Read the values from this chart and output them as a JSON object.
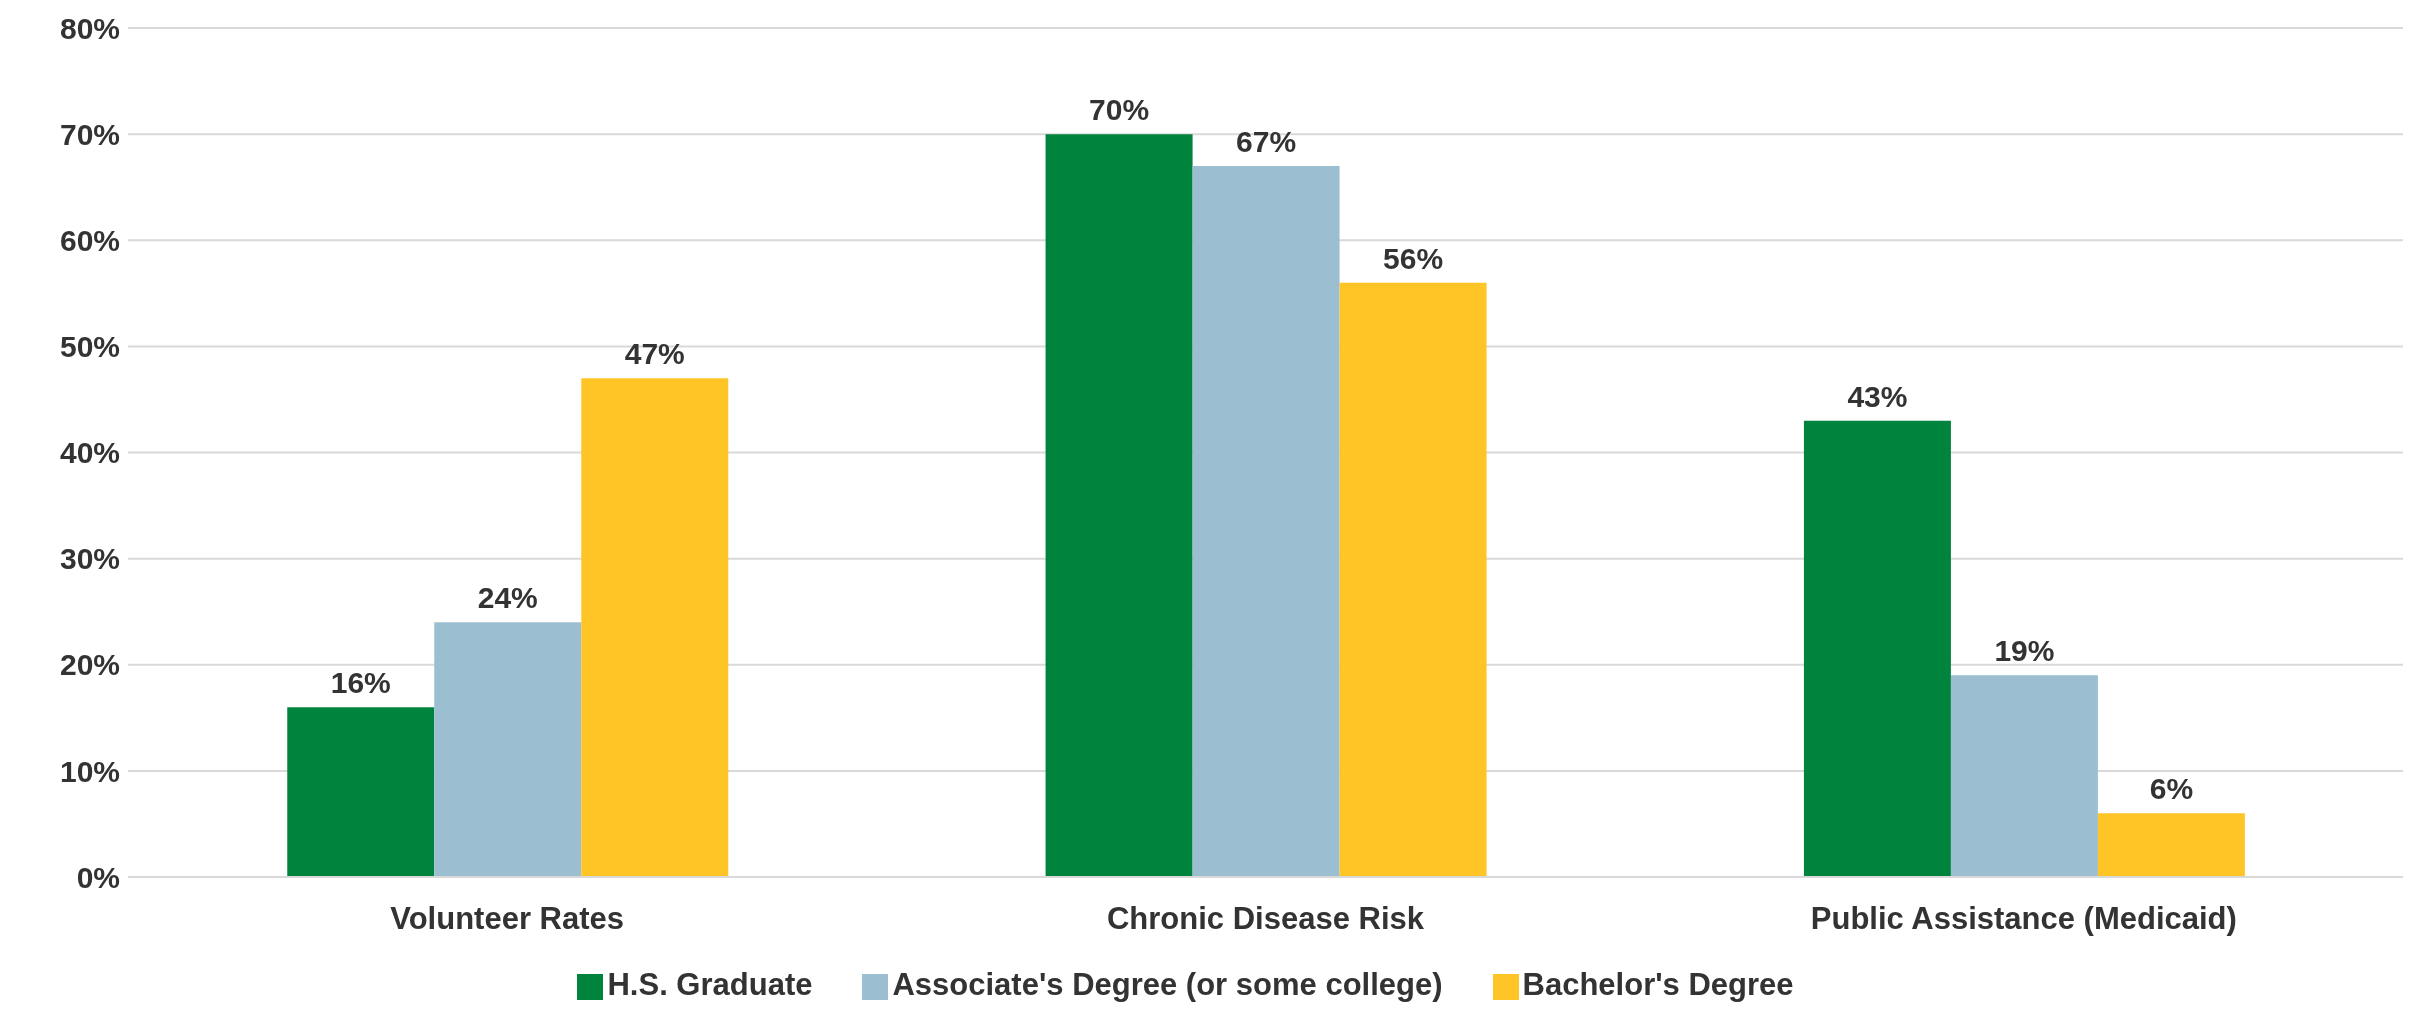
{
  "chart_data": {
    "type": "bar",
    "categories": [
      "Volunteer Rates",
      "Chronic Disease Risk",
      "Public Assistance (Medicaid)"
    ],
    "series": [
      {
        "name": "H.S. Graduate",
        "color": "#00843d",
        "values": [
          16,
          70,
          43
        ],
        "value_labels": [
          "16%",
          "70%",
          "43%"
        ]
      },
      {
        "name": "Associate's Degree (or some college)",
        "color": "#9bbfd1",
        "values": [
          24,
          67,
          19
        ],
        "value_labels": [
          "24%",
          "67%",
          "19%"
        ]
      },
      {
        "name": "Bachelor's Degree",
        "color": "#ffc425",
        "values": [
          47,
          56,
          6
        ],
        "value_labels": [
          "47%",
          "56%",
          "6%"
        ]
      }
    ],
    "ylim": [
      0,
      80
    ],
    "yticks": [
      {
        "value": 0,
        "label": "0%"
      },
      {
        "value": 10,
        "label": "10%"
      },
      {
        "value": 20,
        "label": "20%"
      },
      {
        "value": 30,
        "label": "30%"
      },
      {
        "value": 40,
        "label": "40%"
      },
      {
        "value": 50,
        "label": "50%"
      },
      {
        "value": 60,
        "label": "60%"
      },
      {
        "value": 70,
        "label": "70%"
      },
      {
        "value": 80,
        "label": "80%"
      }
    ],
    "grid": "y",
    "legend": "bottom"
  }
}
